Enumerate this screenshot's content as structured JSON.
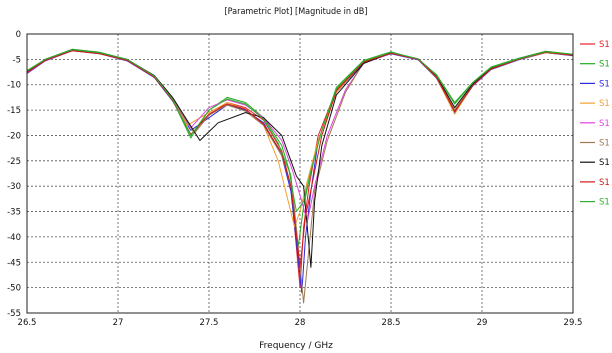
{
  "chart_data": {
    "type": "line",
    "title": "[Parametric Plot] [Magnitude in dB]",
    "xlabel": "Frequency / GHz",
    "ylabel": "",
    "xlim": [
      26.5,
      29.5
    ],
    "ylim": [
      -55,
      0
    ],
    "xticks": [
      "26.5",
      "27",
      "27.5",
      "28",
      "28.5",
      "29",
      "29.5"
    ],
    "yticks": [
      "0",
      "-5",
      "-10",
      "-15",
      "-20",
      "-25",
      "-30",
      "-35",
      "-40",
      "-45",
      "-50",
      "-55"
    ],
    "grid": true,
    "legend_position": "right",
    "series": [
      {
        "name": "S1",
        "color": "#e8202a",
        "x": [
          26.5,
          26.6,
          26.75,
          26.9,
          27.05,
          27.2,
          27.3,
          27.42,
          27.5,
          27.6,
          27.7,
          27.8,
          27.9,
          27.95,
          28.0,
          28.02,
          28.05,
          28.1,
          28.2,
          28.35,
          28.5,
          28.65,
          28.75,
          28.85,
          28.95,
          29.05,
          29.2,
          29.35,
          29.5
        ],
        "y": [
          -7.5,
          -5.2,
          -3.2,
          -3.8,
          -5.2,
          -8.5,
          -13,
          -19.5,
          -16,
          -13.5,
          -14.5,
          -17,
          -23,
          -30,
          -50,
          -38,
          -30,
          -20,
          -11,
          -5.5,
          -3.8,
          -5,
          -8.5,
          -15,
          -10,
          -6.8,
          -5,
          -3.6,
          -4.2
        ]
      },
      {
        "name": "S1",
        "color": "#22aa22",
        "x": [
          26.5,
          26.6,
          26.75,
          26.9,
          27.05,
          27.2,
          27.3,
          27.4,
          27.5,
          27.6,
          27.7,
          27.8,
          27.9,
          27.95,
          27.99,
          28.02,
          28.06,
          28.12,
          28.2,
          28.35,
          28.5,
          28.65,
          28.75,
          28.85,
          28.95,
          29.05,
          29.2,
          29.35,
          29.5
        ],
        "y": [
          -7.2,
          -5,
          -3,
          -3.6,
          -5,
          -8.3,
          -13,
          -20.5,
          -15,
          -12.5,
          -13.5,
          -16.5,
          -22,
          -28,
          -42,
          -34,
          -27,
          -19,
          -10.5,
          -5.2,
          -3.5,
          -5,
          -8,
          -13.5,
          -9.5,
          -6.5,
          -4.8,
          -3.4,
          -4
        ]
      },
      {
        "name": "S1",
        "color": "#2a2ae0",
        "x": [
          26.5,
          26.6,
          26.75,
          26.9,
          27.05,
          27.2,
          27.3,
          27.4,
          27.5,
          27.6,
          27.7,
          27.8,
          27.9,
          27.95,
          28.01,
          28.03,
          28.06,
          28.1,
          28.2,
          28.35,
          28.5,
          28.65,
          28.75,
          28.85,
          28.95,
          29.05,
          29.2,
          29.35,
          29.5
        ],
        "y": [
          -7.8,
          -5.3,
          -3.3,
          -3.9,
          -5.3,
          -8.6,
          -13.2,
          -19,
          -16.5,
          -14,
          -15,
          -17.5,
          -24,
          -31,
          -51,
          -40,
          -31,
          -21,
          -11.5,
          -5.6,
          -3.9,
          -5.1,
          -8.7,
          -15.5,
          -10.2,
          -7,
          -5.1,
          -3.7,
          -4.3
        ]
      },
      {
        "name": "S1",
        "color": "#f0a030",
        "x": [
          26.5,
          26.6,
          26.75,
          26.9,
          27.05,
          27.2,
          27.3,
          27.38,
          27.5,
          27.6,
          27.7,
          27.8,
          27.88,
          27.97,
          28.0,
          28.04,
          28.1,
          28.2,
          28.35,
          28.5,
          28.65,
          28.75,
          28.85,
          28.95,
          29.05,
          29.2,
          29.35,
          29.5
        ],
        "y": [
          -7.6,
          -5.1,
          -3.2,
          -3.8,
          -5.1,
          -8.4,
          -12.8,
          -18,
          -15.5,
          -13.5,
          -14.8,
          -18,
          -25,
          -38,
          -35,
          -29,
          -21,
          -11.5,
          -5.4,
          -3.7,
          -5,
          -8.6,
          -15.8,
          -10,
          -6.9,
          -5,
          -3.7,
          -4.2
        ]
      },
      {
        "name": "S1",
        "color": "#e040e0",
        "x": [
          26.5,
          26.6,
          26.75,
          26.9,
          27.05,
          27.2,
          27.3,
          27.4,
          27.5,
          27.6,
          27.7,
          27.8,
          27.9,
          27.96,
          28.01,
          28.04,
          28.08,
          28.15,
          28.25,
          28.35,
          28.5,
          28.65,
          28.75,
          28.85,
          28.95,
          29.05,
          29.2,
          29.35,
          29.5
        ],
        "y": [
          -7.7,
          -5.2,
          -3.3,
          -3.9,
          -5.2,
          -8.5,
          -13,
          -18.5,
          -14.5,
          -13,
          -14,
          -16.5,
          -21,
          -27,
          -33,
          -37,
          -30,
          -20,
          -11,
          -5.8,
          -3.8,
          -5,
          -8.4,
          -15.2,
          -10,
          -6.8,
          -5,
          -3.6,
          -4.1
        ]
      },
      {
        "name": "S1",
        "color": "#a07850",
        "x": [
          26.5,
          26.6,
          26.75,
          26.9,
          27.05,
          27.2,
          27.3,
          27.42,
          27.5,
          27.6,
          27.7,
          27.8,
          27.9,
          27.96,
          28.02,
          28.05,
          28.08,
          28.15,
          28.25,
          28.35,
          28.5,
          28.65,
          28.75,
          28.85,
          28.95,
          29.05,
          29.2,
          29.35,
          29.5
        ],
        "y": [
          -7.5,
          -5.1,
          -3.2,
          -3.8,
          -5.1,
          -8.4,
          -12.8,
          -19.5,
          -16,
          -14,
          -15.2,
          -18,
          -24,
          -31,
          -53,
          -42,
          -31,
          -21,
          -11.5,
          -5.6,
          -3.8,
          -5,
          -8.6,
          -15,
          -10,
          -6.8,
          -5,
          -3.6,
          -4.2
        ]
      },
      {
        "name": "S1",
        "color": "#111111",
        "x": [
          26.5,
          26.6,
          26.75,
          26.9,
          27.05,
          27.2,
          27.3,
          27.45,
          27.55,
          27.7,
          27.8,
          27.9,
          27.95,
          27.98,
          28.02,
          28.06,
          28.08,
          28.12,
          28.2,
          28.35,
          28.5,
          28.65,
          28.75,
          28.85,
          28.95,
          29.05,
          29.2,
          29.35,
          29.5
        ],
        "y": [
          -7.4,
          -5,
          -3.1,
          -3.7,
          -5,
          -8.2,
          -12.5,
          -21,
          -17.5,
          -15.5,
          -16.5,
          -20,
          -25,
          -28,
          -30,
          -46,
          -33,
          -22,
          -12,
          -5.8,
          -3.7,
          -4.9,
          -8.2,
          -14.5,
          -9.8,
          -6.7,
          -4.9,
          -3.5,
          -4.1
        ]
      },
      {
        "name": "S1",
        "color": "#d01818",
        "x": [
          26.5,
          26.6,
          26.75,
          26.9,
          27.05,
          27.2,
          27.3,
          27.4,
          27.5,
          27.6,
          27.7,
          27.8,
          27.9,
          27.95,
          28.0,
          28.03,
          28.07,
          28.12,
          28.2,
          28.35,
          28.5,
          28.65,
          28.75,
          28.85,
          28.95,
          29.05,
          29.2,
          29.35,
          29.5
        ],
        "y": [
          -7.6,
          -5.2,
          -3.3,
          -3.9,
          -5.2,
          -8.5,
          -13.1,
          -19.8,
          -15.8,
          -13.8,
          -14.8,
          -17.8,
          -23.5,
          -30,
          -46,
          -36,
          -29,
          -20,
          -11.2,
          -5.5,
          -3.8,
          -5,
          -8.5,
          -15.3,
          -10.1,
          -6.9,
          -5,
          -3.6,
          -4.2
        ]
      },
      {
        "name": "S1",
        "color": "#30b030",
        "x": [
          26.5,
          26.6,
          26.75,
          26.9,
          27.05,
          27.2,
          27.3,
          27.4,
          27.5,
          27.6,
          27.7,
          27.8,
          27.88,
          27.94,
          27.98,
          28.02,
          28.06,
          28.12,
          28.2,
          28.35,
          28.5,
          28.65,
          28.75,
          28.85,
          28.95,
          29.05,
          29.2,
          29.35,
          29.5
        ],
        "y": [
          -7.3,
          -5,
          -3.1,
          -3.7,
          -5,
          -8.3,
          -12.9,
          -20,
          -15,
          -12.8,
          -13.8,
          -16.8,
          -21.5,
          -27,
          -35,
          -33,
          -27,
          -19,
          -10.8,
          -5.3,
          -3.6,
          -4.9,
          -8.1,
          -13.8,
          -9.6,
          -6.6,
          -4.9,
          -3.5,
          -4
        ]
      }
    ]
  }
}
